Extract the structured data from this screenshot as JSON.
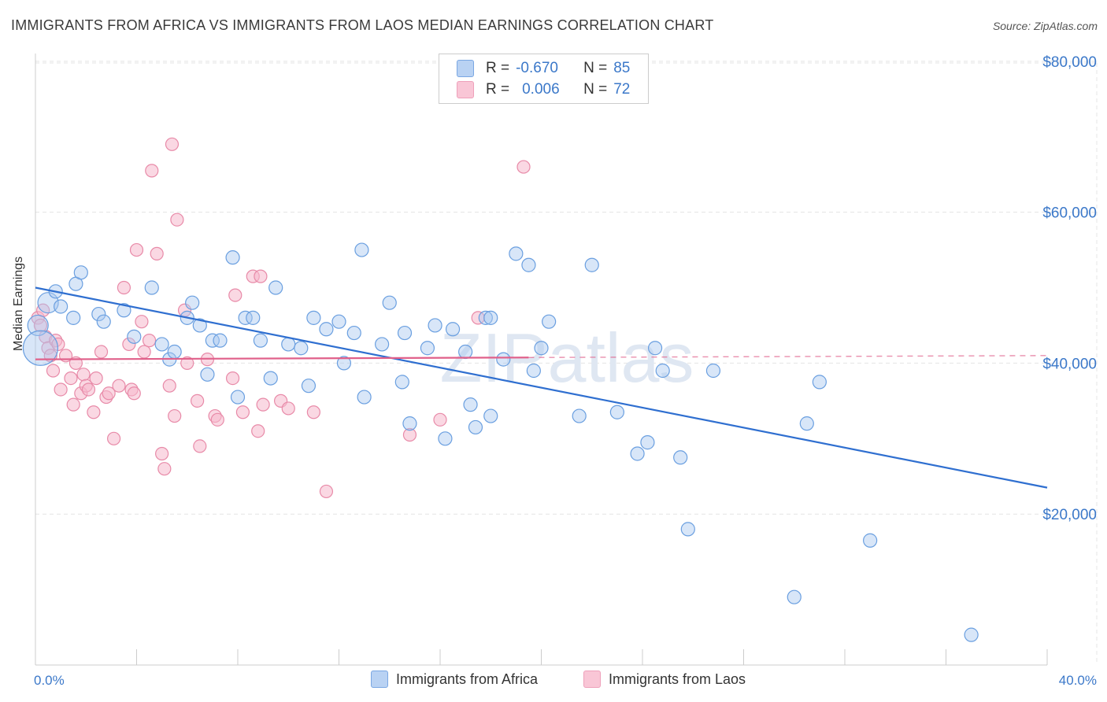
{
  "title": "IMMIGRANTS FROM AFRICA VS IMMIGRANTS FROM LAOS MEDIAN EARNINGS CORRELATION CHART",
  "source": "Source: ZipAtlas.com",
  "watermark": "ZIPatlas",
  "legend_top": {
    "rows": [
      {
        "r_label": "R =",
        "r_value": "-0.670",
        "n_label": "N =",
        "n_value": "85"
      },
      {
        "r_label": "R =",
        "r_value": "0.006",
        "n_label": "N =",
        "n_value": "72"
      }
    ]
  },
  "colors": {
    "africa_fill": "#a8c8f0",
    "africa_stroke": "#6a9fe0",
    "africa_line": "#2f6fd0",
    "laos_fill": "#f6b8cc",
    "laos_stroke": "#e88aa8",
    "laos_line": "#e0608a",
    "axis_text": "#3b78c9",
    "grid": "#e4e4e4"
  },
  "chart_data": {
    "type": "scatter",
    "title": "IMMIGRANTS FROM AFRICA VS IMMIGRANTS FROM LAOS MEDIAN EARNINGS CORRELATION CHART",
    "xlabel": "",
    "ylabel": "Median Earnings",
    "xlim": [
      0,
      40
    ],
    "ylim": [
      0,
      80000
    ],
    "y_ticks": [
      20000,
      40000,
      60000,
      80000
    ],
    "y_tick_labels": [
      "$20,000",
      "$40,000",
      "$60,000",
      "$80,000"
    ],
    "x_tick_labels": [
      "0.0%",
      "40.0%"
    ],
    "grid": true,
    "legend_position": "bottom",
    "series": [
      {
        "name": "Immigrants from Africa",
        "r": -0.67,
        "n": 85,
        "trend": {
          "x": [
            0,
            40
          ],
          "y": [
            50000,
            23500
          ]
        },
        "points": [
          [
            0.1,
            45000
          ],
          [
            0.2,
            42000
          ],
          [
            0.5,
            48000
          ],
          [
            0.8,
            49500
          ],
          [
            1.0,
            47500
          ],
          [
            1.5,
            46000
          ],
          [
            1.6,
            50500
          ],
          [
            1.8,
            52000
          ],
          [
            2.5,
            46500
          ],
          [
            2.7,
            45500
          ],
          [
            3.5,
            47000
          ],
          [
            3.9,
            43500
          ],
          [
            4.6,
            50000
          ],
          [
            5.3,
            40500
          ],
          [
            5.5,
            41500
          ],
          [
            5.0,
            42500
          ],
          [
            6.0,
            46000
          ],
          [
            6.2,
            48000
          ],
          [
            6.5,
            45000
          ],
          [
            6.8,
            38500
          ],
          [
            7.0,
            43000
          ],
          [
            7.3,
            43000
          ],
          [
            7.8,
            54000
          ],
          [
            8.0,
            35500
          ],
          [
            8.3,
            46000
          ],
          [
            8.6,
            46000
          ],
          [
            8.9,
            43000
          ],
          [
            9.3,
            38000
          ],
          [
            9.5,
            50000
          ],
          [
            10.0,
            42500
          ],
          [
            10.5,
            42000
          ],
          [
            10.8,
            37000
          ],
          [
            11.0,
            46000
          ],
          [
            11.5,
            44500
          ],
          [
            12.0,
            45500
          ],
          [
            12.2,
            40000
          ],
          [
            12.6,
            44000
          ],
          [
            12.9,
            55000
          ],
          [
            13.0,
            35500
          ],
          [
            13.7,
            42500
          ],
          [
            14.0,
            48000
          ],
          [
            14.5,
            37500
          ],
          [
            14.6,
            44000
          ],
          [
            14.8,
            32000
          ],
          [
            15.5,
            42000
          ],
          [
            15.8,
            45000
          ],
          [
            16.2,
            30000
          ],
          [
            16.5,
            44500
          ],
          [
            17.0,
            41500
          ],
          [
            17.2,
            34500
          ],
          [
            17.4,
            31500
          ],
          [
            17.8,
            46000
          ],
          [
            18.0,
            46000
          ],
          [
            18.0,
            33000
          ],
          [
            18.5,
            40500
          ],
          [
            19.0,
            54500
          ],
          [
            19.5,
            53000
          ],
          [
            19.7,
            39000
          ],
          [
            20.0,
            42000
          ],
          [
            20.3,
            45500
          ],
          [
            21.5,
            33000
          ],
          [
            22.0,
            53000
          ],
          [
            23.0,
            33500
          ],
          [
            23.8,
            28000
          ],
          [
            24.2,
            29500
          ],
          [
            24.5,
            42000
          ],
          [
            24.8,
            39000
          ],
          [
            25.5,
            27500
          ],
          [
            25.8,
            18000
          ],
          [
            26.8,
            39000
          ],
          [
            30.0,
            9000
          ],
          [
            30.5,
            32000
          ],
          [
            31.0,
            37500
          ],
          [
            33.0,
            16500
          ],
          [
            37.0,
            4000
          ]
        ]
      },
      {
        "name": "Immigrants from Laos",
        "r": 0.006,
        "n": 72,
        "trend": {
          "x": [
            0,
            40
          ],
          "y": [
            40500,
            41000
          ]
        },
        "points": [
          [
            0.1,
            46000
          ],
          [
            0.2,
            45000
          ],
          [
            0.3,
            47000
          ],
          [
            0.4,
            43500
          ],
          [
            0.5,
            42000
          ],
          [
            0.6,
            41000
          ],
          [
            0.7,
            39000
          ],
          [
            0.8,
            43000
          ],
          [
            0.9,
            42500
          ],
          [
            1.0,
            36500
          ],
          [
            1.2,
            41000
          ],
          [
            1.4,
            38000
          ],
          [
            1.5,
            34500
          ],
          [
            1.6,
            40000
          ],
          [
            1.8,
            36000
          ],
          [
            1.9,
            38500
          ],
          [
            2.0,
            37000
          ],
          [
            2.1,
            36500
          ],
          [
            2.3,
            33500
          ],
          [
            2.4,
            38000
          ],
          [
            2.6,
            41500
          ],
          [
            2.8,
            35500
          ],
          [
            2.9,
            36000
          ],
          [
            3.1,
            30000
          ],
          [
            3.3,
            37000
          ],
          [
            3.5,
            50000
          ],
          [
            3.7,
            42500
          ],
          [
            3.8,
            36500
          ],
          [
            3.9,
            36000
          ],
          [
            4.0,
            55000
          ],
          [
            4.2,
            45500
          ],
          [
            4.3,
            41500
          ],
          [
            4.5,
            43000
          ],
          [
            4.6,
            65500
          ],
          [
            4.8,
            54500
          ],
          [
            5.0,
            28000
          ],
          [
            5.1,
            26000
          ],
          [
            5.3,
            37000
          ],
          [
            5.4,
            69000
          ],
          [
            5.5,
            33000
          ],
          [
            5.6,
            59000
          ],
          [
            5.9,
            47000
          ],
          [
            6.0,
            40000
          ],
          [
            6.4,
            35000
          ],
          [
            6.5,
            29000
          ],
          [
            6.8,
            40500
          ],
          [
            7.1,
            33000
          ],
          [
            7.2,
            32500
          ],
          [
            7.8,
            38000
          ],
          [
            7.9,
            49000
          ],
          [
            8.2,
            33500
          ],
          [
            8.6,
            51500
          ],
          [
            8.8,
            31000
          ],
          [
            8.9,
            51500
          ],
          [
            9.0,
            34500
          ],
          [
            9.7,
            35000
          ],
          [
            10.0,
            34000
          ],
          [
            11.0,
            33500
          ],
          [
            11.5,
            23000
          ],
          [
            14.8,
            30500
          ],
          [
            16.0,
            32500
          ],
          [
            17.5,
            46000
          ],
          [
            19.3,
            66000
          ]
        ]
      }
    ]
  },
  "bottom_legend": [
    {
      "label": "Immigrants from Africa"
    },
    {
      "label": "Immigrants from Laos"
    }
  ]
}
